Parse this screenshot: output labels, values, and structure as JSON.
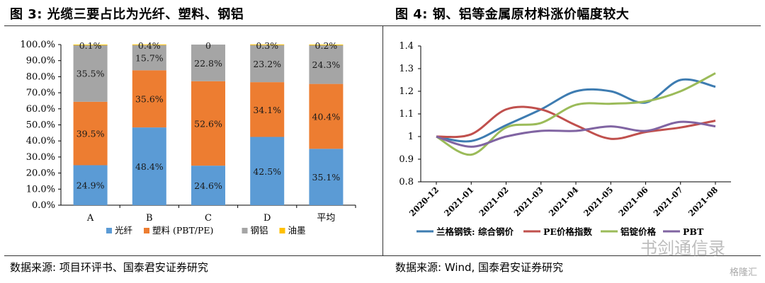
{
  "left_panel": {
    "title": "图 3: 光缆三要占比为光纤、塑料、钢铝",
    "source": "数据来源: 项目环评书、国泰君安证券研究"
  },
  "right_panel": {
    "title": "图 4: 钢、铝等金属原材料涨价幅度较大",
    "source": "数据来源: Wind, 国泰君安证券研究"
  },
  "watermark": {
    "text1": "书剑通信录",
    "text2": "格隆汇"
  },
  "chart_data": [
    {
      "type": "bar",
      "stacked": true,
      "categories": [
        "A",
        "B",
        "C",
        "D",
        "平均"
      ],
      "series": [
        {
          "name": "光纤",
          "color": "#5B9BD5",
          "values": [
            24.9,
            48.4,
            24.6,
            42.5,
            35.1
          ],
          "labels": [
            "24.9%",
            "48.4%",
            "24.6%",
            "42.5%",
            "35.1%"
          ]
        },
        {
          "name": "塑料 (PBT/PE)",
          "color": "#ED7D31",
          "values": [
            39.5,
            35.6,
            52.6,
            34.1,
            40.4
          ],
          "labels": [
            "39.5%",
            "35.6%",
            "52.6%",
            "34.1%",
            "40.4%"
          ]
        },
        {
          "name": "钢铝",
          "color": "#A5A5A5",
          "values": [
            35.5,
            15.7,
            22.8,
            23.2,
            24.3
          ],
          "labels": [
            "35.5%",
            "15.7%",
            "22.8%",
            "23.2%",
            "24.3%"
          ]
        },
        {
          "name": "油墨",
          "color": "#FFC000",
          "values": [
            0.1,
            0.4,
            0,
            0.3,
            0.2
          ],
          "labels": [
            "0.1%",
            "0.4%",
            "0",
            "0.3%",
            "0.2%"
          ]
        }
      ],
      "yticks": [
        "0.0%",
        "10.0%",
        "20.0%",
        "30.0%",
        "40.0%",
        "50.0%",
        "60.0%",
        "70.0%",
        "80.0%",
        "90.0%",
        "100.0%"
      ],
      "ylim": [
        0,
        100
      ],
      "legend": "bottom",
      "grid": false
    },
    {
      "type": "line",
      "x": [
        "2020-12",
        "2021-01",
        "2021-02",
        "2021-03",
        "2021-04",
        "2021-05",
        "2021-06",
        "2021-07",
        "2021-08"
      ],
      "series": [
        {
          "name": "兰格钢铁: 综合钢价",
          "color": "#3E7CB1",
          "values": [
            1.0,
            0.98,
            1.05,
            1.12,
            1.2,
            1.2,
            1.15,
            1.25,
            1.22
          ]
        },
        {
          "name": "PE价格指数",
          "color": "#C0504D",
          "values": [
            1.0,
            1.01,
            1.12,
            1.12,
            1.05,
            0.99,
            1.02,
            1.04,
            1.07
          ]
        },
        {
          "name": "铝锭价格",
          "color": "#9BBB59",
          "values": [
            1.0,
            0.92,
            1.04,
            1.06,
            1.14,
            1.145,
            1.155,
            1.2,
            1.28
          ]
        },
        {
          "name": "PBT",
          "color": "#8064A2",
          "values": [
            1.0,
            0.955,
            1.0,
            1.025,
            1.025,
            1.045,
            1.025,
            1.065,
            1.045
          ]
        }
      ],
      "yticks": [
        "0.8",
        "0.9",
        "1",
        "1.1",
        "1.2",
        "1.3",
        "1.4"
      ],
      "ylim": [
        0.8,
        1.4
      ],
      "legend": "bottom",
      "grid": false
    }
  ]
}
